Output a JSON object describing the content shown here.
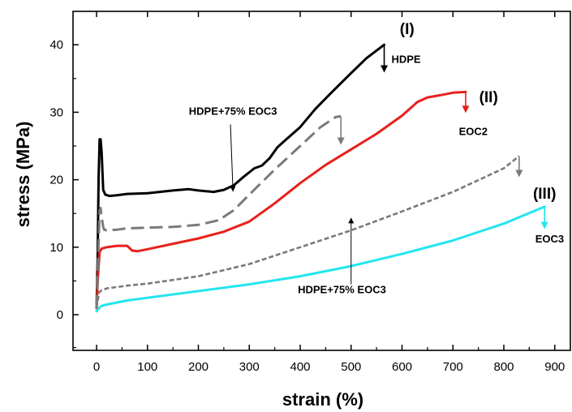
{
  "chart_data": {
    "type": "line",
    "xlabel": "strain (%)",
    "ylabel": "stress (MPa)",
    "xlim": [
      -40,
      935
    ],
    "ylim": [
      -5,
      45
    ],
    "xticks": [
      0,
      100,
      200,
      300,
      400,
      500,
      600,
      700,
      800,
      900
    ],
    "yticks": [
      0,
      10,
      20,
      30,
      40
    ],
    "grid": false,
    "series": [
      {
        "name": "HDPE",
        "color": "#000000",
        "style": "solid",
        "x": [
          0,
          2,
          4,
          6,
          8,
          10,
          13,
          17,
          25,
          40,
          60,
          100,
          150,
          180,
          200,
          230,
          250,
          270,
          290,
          310,
          325,
          340,
          355,
          370,
          400,
          430,
          460,
          500,
          530,
          565
        ],
        "y": [
          1,
          8,
          20,
          26,
          26,
          24,
          18.5,
          17.8,
          17.6,
          17.7,
          17.9,
          18,
          18.4,
          18.6,
          18.4,
          18.2,
          18.5,
          19.2,
          20.5,
          21.7,
          22.1,
          23.2,
          24.8,
          25.8,
          27.8,
          30.5,
          32.8,
          35.8,
          38,
          40
        ]
      },
      {
        "name": "EOC2",
        "color": "#e8201b",
        "style": "solid",
        "x": [
          0,
          3,
          6,
          10,
          20,
          40,
          60,
          70,
          80,
          100,
          150,
          200,
          250,
          300,
          350,
          400,
          450,
          500,
          550,
          600,
          630,
          650,
          680,
          700,
          725
        ],
        "y": [
          1,
          6,
          9.3,
          9.8,
          10,
          10.2,
          10.2,
          9.5,
          9.4,
          9.7,
          10.5,
          11.3,
          12.3,
          13.8,
          16.5,
          19.5,
          22.2,
          24.5,
          26.8,
          29.5,
          31.5,
          32.2,
          32.6,
          32.9,
          33
        ]
      },
      {
        "name": "EOC3",
        "color": "#23e5f0",
        "style": "solid",
        "x": [
          0,
          5,
          10,
          20,
          40,
          60,
          100,
          200,
          300,
          400,
          500,
          600,
          700,
          800,
          880
        ],
        "y": [
          0.5,
          1.0,
          1.3,
          1.5,
          1.8,
          2.1,
          2.5,
          3.5,
          4.5,
          5.7,
          7.2,
          9,
          11,
          13.5,
          16
        ]
      },
      {
        "name": "HDPE+75% EOC3",
        "color": "#7a7a7a",
        "style": "dashed",
        "x": [
          0,
          3,
          6,
          8,
          10,
          13,
          15,
          20,
          40,
          60,
          100,
          150,
          200,
          240,
          270,
          300,
          350,
          400,
          440,
          470,
          480
        ],
        "y": [
          1,
          8,
          15.5,
          15.8,
          14.5,
          13,
          12.6,
          12.5,
          12.6,
          12.8,
          12.9,
          13,
          13.3,
          14,
          15.5,
          17.8,
          21.5,
          25,
          27.8,
          29.3,
          29.4
        ]
      },
      {
        "name": "HDPE+75% EOC3",
        "color": "#7a7a7a",
        "style": "short-dash",
        "x": [
          0,
          5,
          10,
          20,
          40,
          60,
          100,
          200,
          300,
          400,
          500,
          600,
          700,
          800,
          830
        ],
        "y": [
          1,
          3.3,
          3.6,
          3.9,
          4.1,
          4.3,
          4.6,
          5.7,
          7.5,
          10,
          12.5,
          15.3,
          18.2,
          21.7,
          23.5
        ]
      }
    ],
    "annotations": [
      {
        "text": "(I)",
        "x": 610,
        "y": 41.6,
        "kind": "roman"
      },
      {
        "text": "(II)",
        "x": 770,
        "y": 31.5,
        "kind": "roman"
      },
      {
        "text": "(III)",
        "x": 880,
        "y": 17.2,
        "kind": "roman"
      },
      {
        "text": "HDPE",
        "x": 608,
        "y": 37.3,
        "kind": "label"
      },
      {
        "text": "EOC2",
        "x": 740,
        "y": 26.6,
        "kind": "label"
      },
      {
        "text": "EOC3",
        "x": 890,
        "y": 10.7,
        "kind": "label"
      },
      {
        "text": "HDPE+75% EOC3",
        "x": 268,
        "y": 29.6,
        "kind": "label"
      },
      {
        "text": "HDPE+75% EOC3",
        "x": 482,
        "y": 3.2,
        "kind": "label"
      }
    ],
    "break_arrows": [
      {
        "x": 565,
        "y1": 40,
        "y2": 36,
        "color": "#000000"
      },
      {
        "x": 725,
        "y1": 33,
        "y2": 30,
        "color": "#e8201b"
      },
      {
        "x": 480,
        "y1": 29.3,
        "y2": 25.3,
        "color": "#7a7a7a"
      },
      {
        "x": 830,
        "y1": 23.5,
        "y2": 20.5,
        "color": "#7a7a7a"
      },
      {
        "x": 880,
        "y1": 16,
        "y2": 12.8,
        "color": "#23e5f0"
      }
    ],
    "pointer_arrows": [
      {
        "x1": 263,
        "y1": 28.2,
        "x2": 268,
        "y2": 18.3
      },
      {
        "x1": 500,
        "y1": 4.5,
        "x2": 500,
        "y2": 14.3
      }
    ]
  }
}
